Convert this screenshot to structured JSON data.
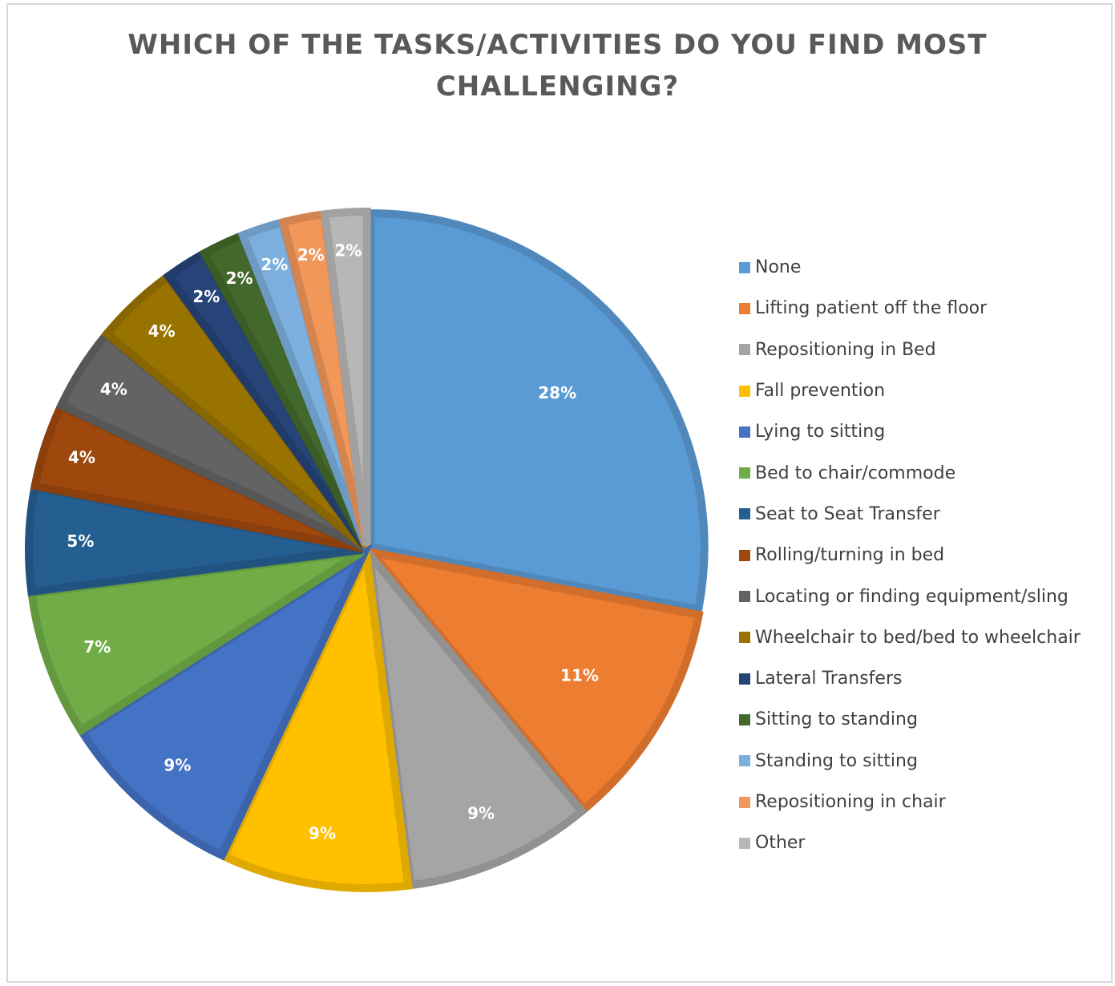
{
  "chart_data": {
    "type": "pie",
    "title_lines": [
      "WHICH OF THE TASKS/ACTIVITIES DO YOU FIND MOST",
      "CHALLENGING?"
    ],
    "legend_position": "right",
    "slices": [
      {
        "label": "None",
        "value": 28,
        "display": "28%",
        "color": "#5B9BD5"
      },
      {
        "label": "Lifting patient off the floor",
        "value": 11,
        "display": "11%",
        "color": "#ED7D31"
      },
      {
        "label": "Repositioning in Bed",
        "value": 9,
        "display": "9%",
        "color": "#A5A5A5"
      },
      {
        "label": "Fall prevention",
        "value": 9,
        "display": "9%",
        "color": "#FFC000"
      },
      {
        "label": "Lying to sitting",
        "value": 9,
        "display": "9%",
        "color": "#4472C4"
      },
      {
        "label": "Bed to chair/commode",
        "value": 7,
        "display": "7%",
        "color": "#70AD47"
      },
      {
        "label": "Seat to Seat Transfer",
        "value": 5,
        "display": "5%",
        "color": "#255E91"
      },
      {
        "label": "Rolling/turning in bed",
        "value": 4,
        "display": "4%",
        "color": "#9E480E"
      },
      {
        "label": "Locating or finding equipment/sling",
        "value": 4,
        "display": "4%",
        "color": "#636363"
      },
      {
        "label": "Wheelchair to bed/bed to wheelchair",
        "value": 4,
        "display": "4%",
        "color": "#997300"
      },
      {
        "label": "Lateral Transfers",
        "value": 2,
        "display": "2%",
        "color": "#264478"
      },
      {
        "label": "Sitting to standing",
        "value": 2,
        "display": "2%",
        "color": "#43682B"
      },
      {
        "label": "Standing to sitting",
        "value": 2,
        "display": "2%",
        "color": "#7CAFDD"
      },
      {
        "label": "Repositioning in chair",
        "value": 2,
        "display": "2%",
        "color": "#F1975A"
      },
      {
        "label": "Other",
        "value": 2,
        "display": "2%",
        "color": "#B7B7B7"
      }
    ]
  }
}
